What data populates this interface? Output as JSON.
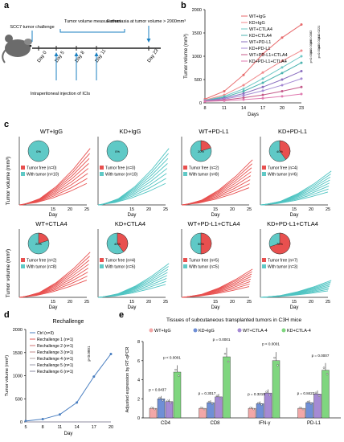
{
  "panel_labels": {
    "a": "a",
    "b": "b",
    "c": "c",
    "d": "d",
    "e": "e"
  },
  "panel_a": {
    "challenge": "SCC7 tumor challenge",
    "measure": "Tumor volume measurement",
    "euthanasia": "Euthanasia at tumor volume > 2000mm³",
    "injection": "Intraperitoneal injection of ICIs",
    "days": [
      "Day 0",
      "Day 5",
      "Day 8",
      "Day 11",
      "Day 23"
    ]
  },
  "chart_data": [
    {
      "id": "b",
      "type": "line",
      "ylabel": "Tumor volume (mm³)",
      "xlabel": "Days",
      "x": [
        8,
        11,
        14,
        17,
        20,
        23
      ],
      "ylim": [
        0,
        2000
      ],
      "yticks": [
        0,
        500,
        1000,
        1500,
        2000
      ],
      "series": [
        {
          "name": "WT+IgG",
          "color": "#e8696b",
          "values": [
            80,
            250,
            600,
            1050,
            1400,
            1680
          ]
        },
        {
          "name": "KD+IgG",
          "color": "#f08a8c",
          "values": [
            60,
            170,
            380,
            650,
            900,
            1120
          ]
        },
        {
          "name": "WT+CTLA4",
          "color": "#6fc8c6",
          "values": [
            55,
            140,
            300,
            520,
            760,
            1000
          ]
        },
        {
          "name": "KD+CTLA4",
          "color": "#4bb3b0",
          "values": [
            50,
            120,
            250,
            430,
            640,
            860
          ]
        },
        {
          "name": "WT+PD-L1",
          "color": "#8a6fbf",
          "values": [
            45,
            100,
            200,
            340,
            500,
            680
          ]
        },
        {
          "name": "KD+PD-L1",
          "color": "#a58ad4",
          "values": [
            40,
            80,
            160,
            260,
            380,
            520
          ]
        },
        {
          "name": "WT+PD-L1+CTLA4",
          "color": "#c45a8a",
          "values": [
            35,
            60,
            110,
            170,
            250,
            340
          ]
        },
        {
          "name": "KD+PD-L1+CTLA4",
          "color": "#e07ab0",
          "values": [
            30,
            45,
            70,
            100,
            140,
            190
          ]
        }
      ],
      "pvals": [
        "p<0.0001",
        "p=0.0042",
        "p=0.0009",
        "p=0.0131",
        "p=0.0382",
        "p=0.0221"
      ]
    },
    {
      "id": "c",
      "type": "line",
      "xlabel": "Day",
      "ylabel": "Tumor volume (mm³)",
      "xticks": [
        15,
        20,
        25
      ],
      "legend_free": "Tumor free",
      "legend_with": "With tumor",
      "groups": [
        {
          "title": "WT+IgG",
          "color": "#e8504f",
          "free": "(n=0)",
          "with": "(n=10)",
          "pct": "0%",
          "free_frac": 0.0
        },
        {
          "title": "KD+IgG",
          "color": "#4fc4c2",
          "free": "(n=0)",
          "with": "(n=10)",
          "pct": "0%",
          "free_frac": 0.0
        },
        {
          "title": "WT+PD-L1",
          "color": "#e8504f",
          "free": "(n=2)",
          "with": "(n=8)",
          "pct": "20%",
          "free_frac": 0.2
        },
        {
          "title": "KD+PD-L1",
          "color": "#4fc4c2",
          "free": "(n=4)",
          "with": "(n=6)",
          "pct": "40%",
          "free_frac": 0.4
        },
        {
          "title": "WT+CTLA4",
          "color": "#e8504f",
          "free": "(n=2)",
          "with": "(n=8)",
          "pct": "20%",
          "free_frac": 0.2
        },
        {
          "title": "KD+CTLA4",
          "color": "#4fc4c2",
          "free": "(n=4)",
          "with": "(n=6)",
          "pct": "40%",
          "free_frac": 0.4
        },
        {
          "title": "WT+PD-L1+CTLA4",
          "color": "#e8504f",
          "free": "(n=5)",
          "with": "(n=5)",
          "pct": "50%",
          "free_frac": 0.5
        },
        {
          "title": "KD+PD-L1+CTLA4",
          "color": "#4fc4c2",
          "free": "(n=7)",
          "with": "(n=3)",
          "pct": "70%",
          "free_frac": 0.7
        }
      ]
    },
    {
      "id": "d",
      "type": "line",
      "title": "Rechallenge",
      "xlabel": "Day",
      "ylabel": "Tumor volume (mm³)",
      "x": [
        5,
        8,
        11,
        14,
        17,
        20
      ],
      "ylim": [
        0,
        2000
      ],
      "yticks": [
        0,
        500,
        1000,
        1500,
        2000
      ],
      "series": [
        {
          "name": "Ctrl (n=3)",
          "color": "#4a7fc1",
          "values": [
            20,
            60,
            160,
            420,
            980,
            1470
          ]
        },
        {
          "name": "Rechallenge 1 (n=1)",
          "color": "#e05a5a",
          "values": [
            0,
            0,
            0,
            0,
            0,
            0
          ]
        },
        {
          "name": "Rechallenge 2 (n=1)",
          "color": "#d07070",
          "values": [
            0,
            0,
            0,
            0,
            0,
            0
          ]
        },
        {
          "name": "Rechallenge 3 (n=1)",
          "color": "#c08888",
          "values": [
            0,
            0,
            0,
            0,
            0,
            0
          ]
        },
        {
          "name": "Rechallenge 4 (n=1)",
          "color": "#b0a0a0",
          "values": [
            0,
            0,
            0,
            0,
            0,
            0
          ]
        },
        {
          "name": "Rechallenge 5 (n=1)",
          "color": "#9a9aa8",
          "values": [
            0,
            0,
            0,
            0,
            0,
            0
          ]
        },
        {
          "name": "Rechallenge 6 (n=1)",
          "color": "#8a8aa0",
          "values": [
            0,
            0,
            0,
            0,
            0,
            0
          ]
        }
      ],
      "pval": "p<0.0001"
    },
    {
      "id": "e",
      "type": "bar",
      "title": "Tissues of subcutaneous transplanted tumors in C3H mice",
      "ylabel": "Adjusted expression by RT-qPCR",
      "categories": [
        "CD4",
        "CD8",
        "IFN-γ",
        "PD-L1"
      ],
      "ylim": [
        0,
        8
      ],
      "yticks": [
        0,
        2,
        4,
        6,
        8
      ],
      "series": [
        {
          "name": "WT+IgG",
          "color": "#f2a7a7",
          "values": [
            1.0,
            1.0,
            1.0,
            1.0
          ]
        },
        {
          "name": "KD+IgG",
          "color": "#6f8fd6",
          "values": [
            2.0,
            1.6,
            1.5,
            1.6
          ]
        },
        {
          "name": "WT+CTLA-4",
          "color": "#a58ad4",
          "values": [
            1.7,
            2.2,
            2.6,
            2.5
          ]
        },
        {
          "name": "KD+CTLA-4",
          "color": "#7fd67f",
          "values": [
            4.8,
            6.4,
            6.0,
            5.0
          ]
        }
      ],
      "pvals": [
        [
          "p = 0.0437",
          "p < 0.0001"
        ],
        [
          "p = 0.3017",
          "p = 0.0001"
        ],
        [
          "p = 0.3215",
          "p < 0.0001"
        ],
        [
          "p = 0.8423",
          "p = 0.0007"
        ]
      ]
    }
  ]
}
